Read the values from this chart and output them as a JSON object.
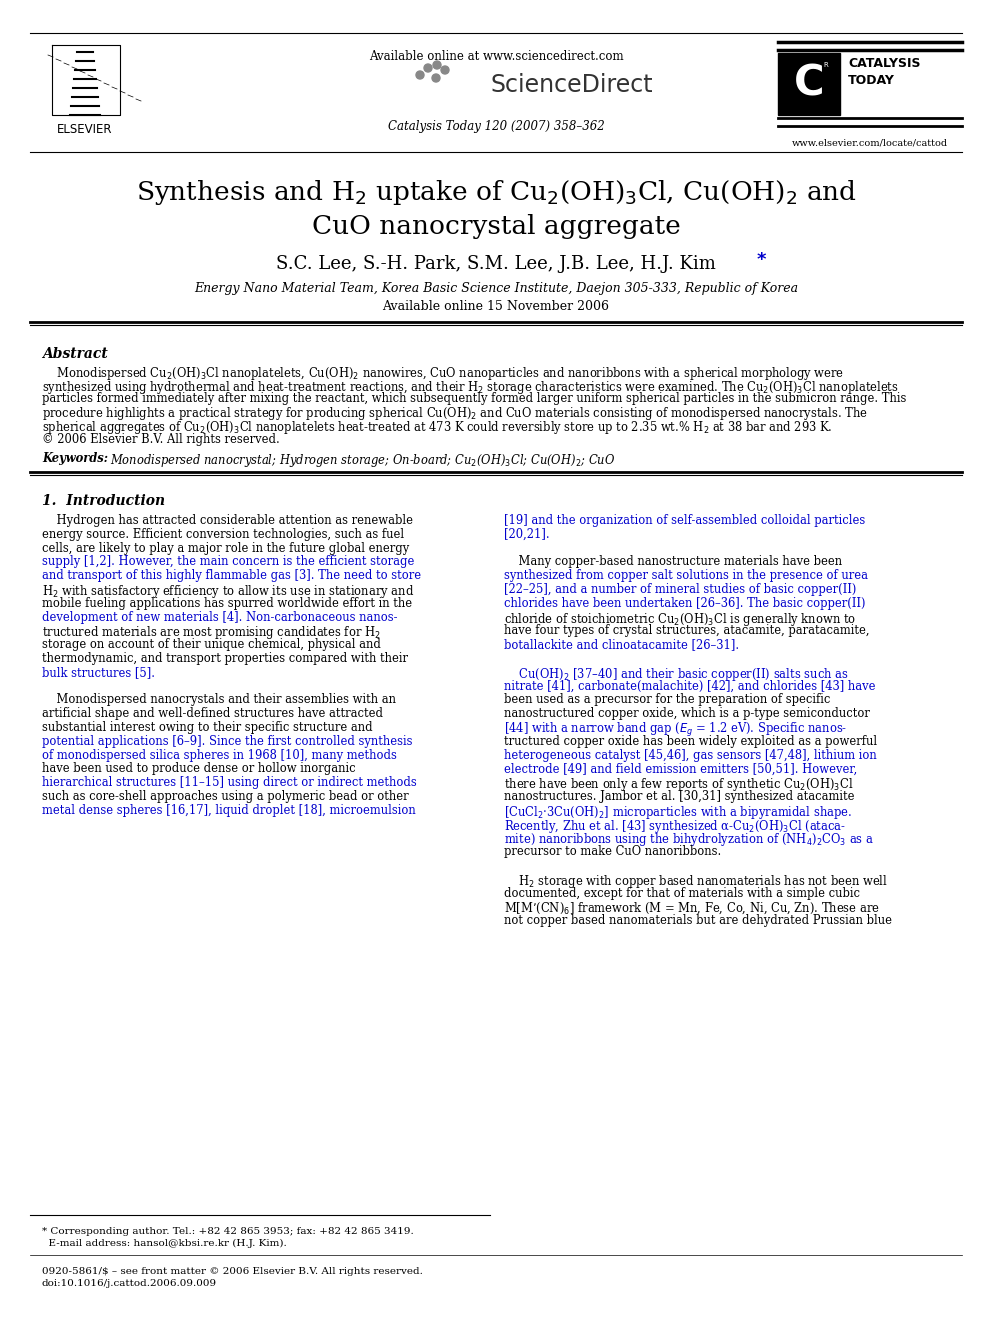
{
  "background_color": "#ffffff",
  "page_width": 9.92,
  "page_height": 13.23,
  "dpi": 100,
  "header": {
    "available_online_text": "Available online at www.sciencedirect.com",
    "journal_ref": "Catalysis Today 120 (2007) 358–362",
    "elsevier_text": "ELSEVIER",
    "website_text": "www.elsevier.com/locate/cattod",
    "catalysis_text": "CATALYSIS\nTODAY"
  },
  "title_line1": "Synthesis and H$_2$ uptake of Cu$_2$(OH)$_3$Cl, Cu(OH)$_2$ and",
  "title_line2": "CuO nanocrystal aggregate",
  "authors": "S.C. Lee, S.-H. Park, S.M. Lee, J.B. Lee, H.J. Kim",
  "affiliation": "Energy Nano Material Team, Korea Basic Science Institute, Daejon 305-333, Republic of Korea",
  "available_online": "Available online 15 November 2006",
  "abstract_title": "Abstract",
  "abstract_lines": [
    "    Monodispersed Cu$_2$(OH)$_3$Cl nanoplatelets, Cu(OH)$_2$ nanowires, CuO nanoparticles and nanoribbons with a spherical morphology were",
    "synthesized using hydrothermal and heat-treatment reactions, and their H$_2$ storage characteristics were examined. The Cu$_2$(OH)$_3$Cl nanoplatelets",
    "particles formed immediately after mixing the reactant, which subsequently formed larger uniform spherical particles in the submicron range. This",
    "procedure highlights a practical strategy for producing spherical Cu(OH)$_2$ and CuO materials consisting of monodispersed nanocrystals. The",
    "spherical aggregates of Cu$_2$(OH)$_3$Cl nanoplatelets heat-treated at 473 K could reversibly store up to 2.35 wt.% H$_2$ at 38 bar and 293 K.",
    "© 2006 Elsevier B.V. All rights reserved."
  ],
  "keywords_label": "Keywords:",
  "keywords_text": "Monodispersed nanocrystal; Hydrogen storage; On-board; Cu$_2$(OH)$_3$Cl; Cu(OH)$_2$; CuO",
  "section1_title": "1.  Introduction",
  "col1_lines": [
    "    Hydrogen has attracted considerable attention as renewable",
    "energy source. Efficient conversion technologies, such as fuel",
    "cells, are likely to play a major role in the future global energy",
    "supply [1,2]. However, the main concern is the efficient storage",
    "and transport of this highly flammable gas [3]. The need to store",
    "H$_2$ with satisfactory efficiency to allow its use in stationary and",
    "mobile fueling applications has spurred worldwide effort in the",
    "development of new materials [4]. Non-carbonaceous nanos-",
    "tructured materials are most promising candidates for H$_2$",
    "storage on account of their unique chemical, physical and",
    "thermodynamic, and transport properties compared with their",
    "bulk structures [5].",
    "",
    "    Monodispersed nanocrystals and their assemblies with an",
    "artificial shape and well-defined structures have attracted",
    "substantial interest owing to their specific structure and",
    "potential applications [6–9]. Since the first controlled synthesis",
    "of monodispersed silica spheres in 1968 [10], many methods",
    "have been used to produce dense or hollow inorganic",
    "hierarchical structures [11–15] using direct or indirect methods",
    "such as core-shell approaches using a polymeric bead or other",
    "metal dense spheres [16,17], liquid droplet [18], microemulsion"
  ],
  "col2_lines": [
    "[19] and the organization of self-assembled colloidal particles",
    "[20,21].",
    "",
    "    Many copper-based nanostructure materials have been",
    "synthesized from copper salt solutions in the presence of urea",
    "[22–25], and a number of mineral studies of basic copper(II)",
    "chlorides have been undertaken [26–36]. The basic copper(II)",
    "chloride of stoichiometric Cu$_2$(OH)$_3$Cl is generally known to",
    "have four types of crystal structures, atacamite, paratacamite,",
    "botallackite and clinoatacamite [26–31].",
    "",
    "    Cu(OH)$_2$ [37–40] and their basic copper(II) salts such as",
    "nitrate [41], carbonate(malachite) [42], and chlorides [43] have",
    "been used as a precursor for the preparation of specific",
    "nanostructured copper oxide, which is a p-type semiconductor",
    "[44] with a narrow band gap ($E_g$ = 1.2 eV). Specific nanos-",
    "tructured copper oxide has been widely exploited as a powerful",
    "heterogeneous catalyst [45,46], gas sensors [47,48], lithium ion",
    "electrode [49] and field emission emitters [50,51]. However,",
    "there have been only a few reports of synthetic Cu$_2$(OH)$_3$Cl",
    "nanostructures. Jambor et al. [30,31] synthesized atacamite",
    "[CuCl$_2$·3Cu(OH)$_2$] microparticles with a bipyramidal shape.",
    "Recently, Zhu et al. [43] synthesized α-Cu$_2$(OH)$_3$Cl (ataca-",
    "mite) nanoribbons using the bihydrolyzation of (NH$_4$)$_2$CO$_3$ as a",
    "precursor to make CuO nanoribbons.",
    "",
    "    H$_2$ storage with copper based nanomaterials has not been well",
    "documented, except for that of materials with a simple cubic",
    "M[M’(CN)$_6$] framework (M = Mn, Fe, Co, Ni, Cu, Zn). These are",
    "not copper based nanomaterials but are dehydrated Prussian blue"
  ],
  "col1_blue_lines": [
    3,
    4,
    7,
    11,
    16,
    17,
    19,
    21
  ],
  "col2_blue_lines": [
    0,
    1,
    4,
    5,
    6,
    9,
    11,
    12,
    15,
    17,
    18,
    21,
    22,
    23
  ],
  "footer_note": "* Corresponding author. Tel.: +82 42 865 3953; fax: +82 42 865 3419.",
  "footer_email": "  E-mail address: hansol@kbsi.re.kr (H.J. Kim).",
  "footer_copyright": "0920-5861/$ – see front matter © 2006 Elsevier B.V. All rights reserved.",
  "footer_doi": "doi:10.1016/j.cattod.2006.09.009",
  "blue_color": "#0000cc",
  "text_color": "#000000"
}
